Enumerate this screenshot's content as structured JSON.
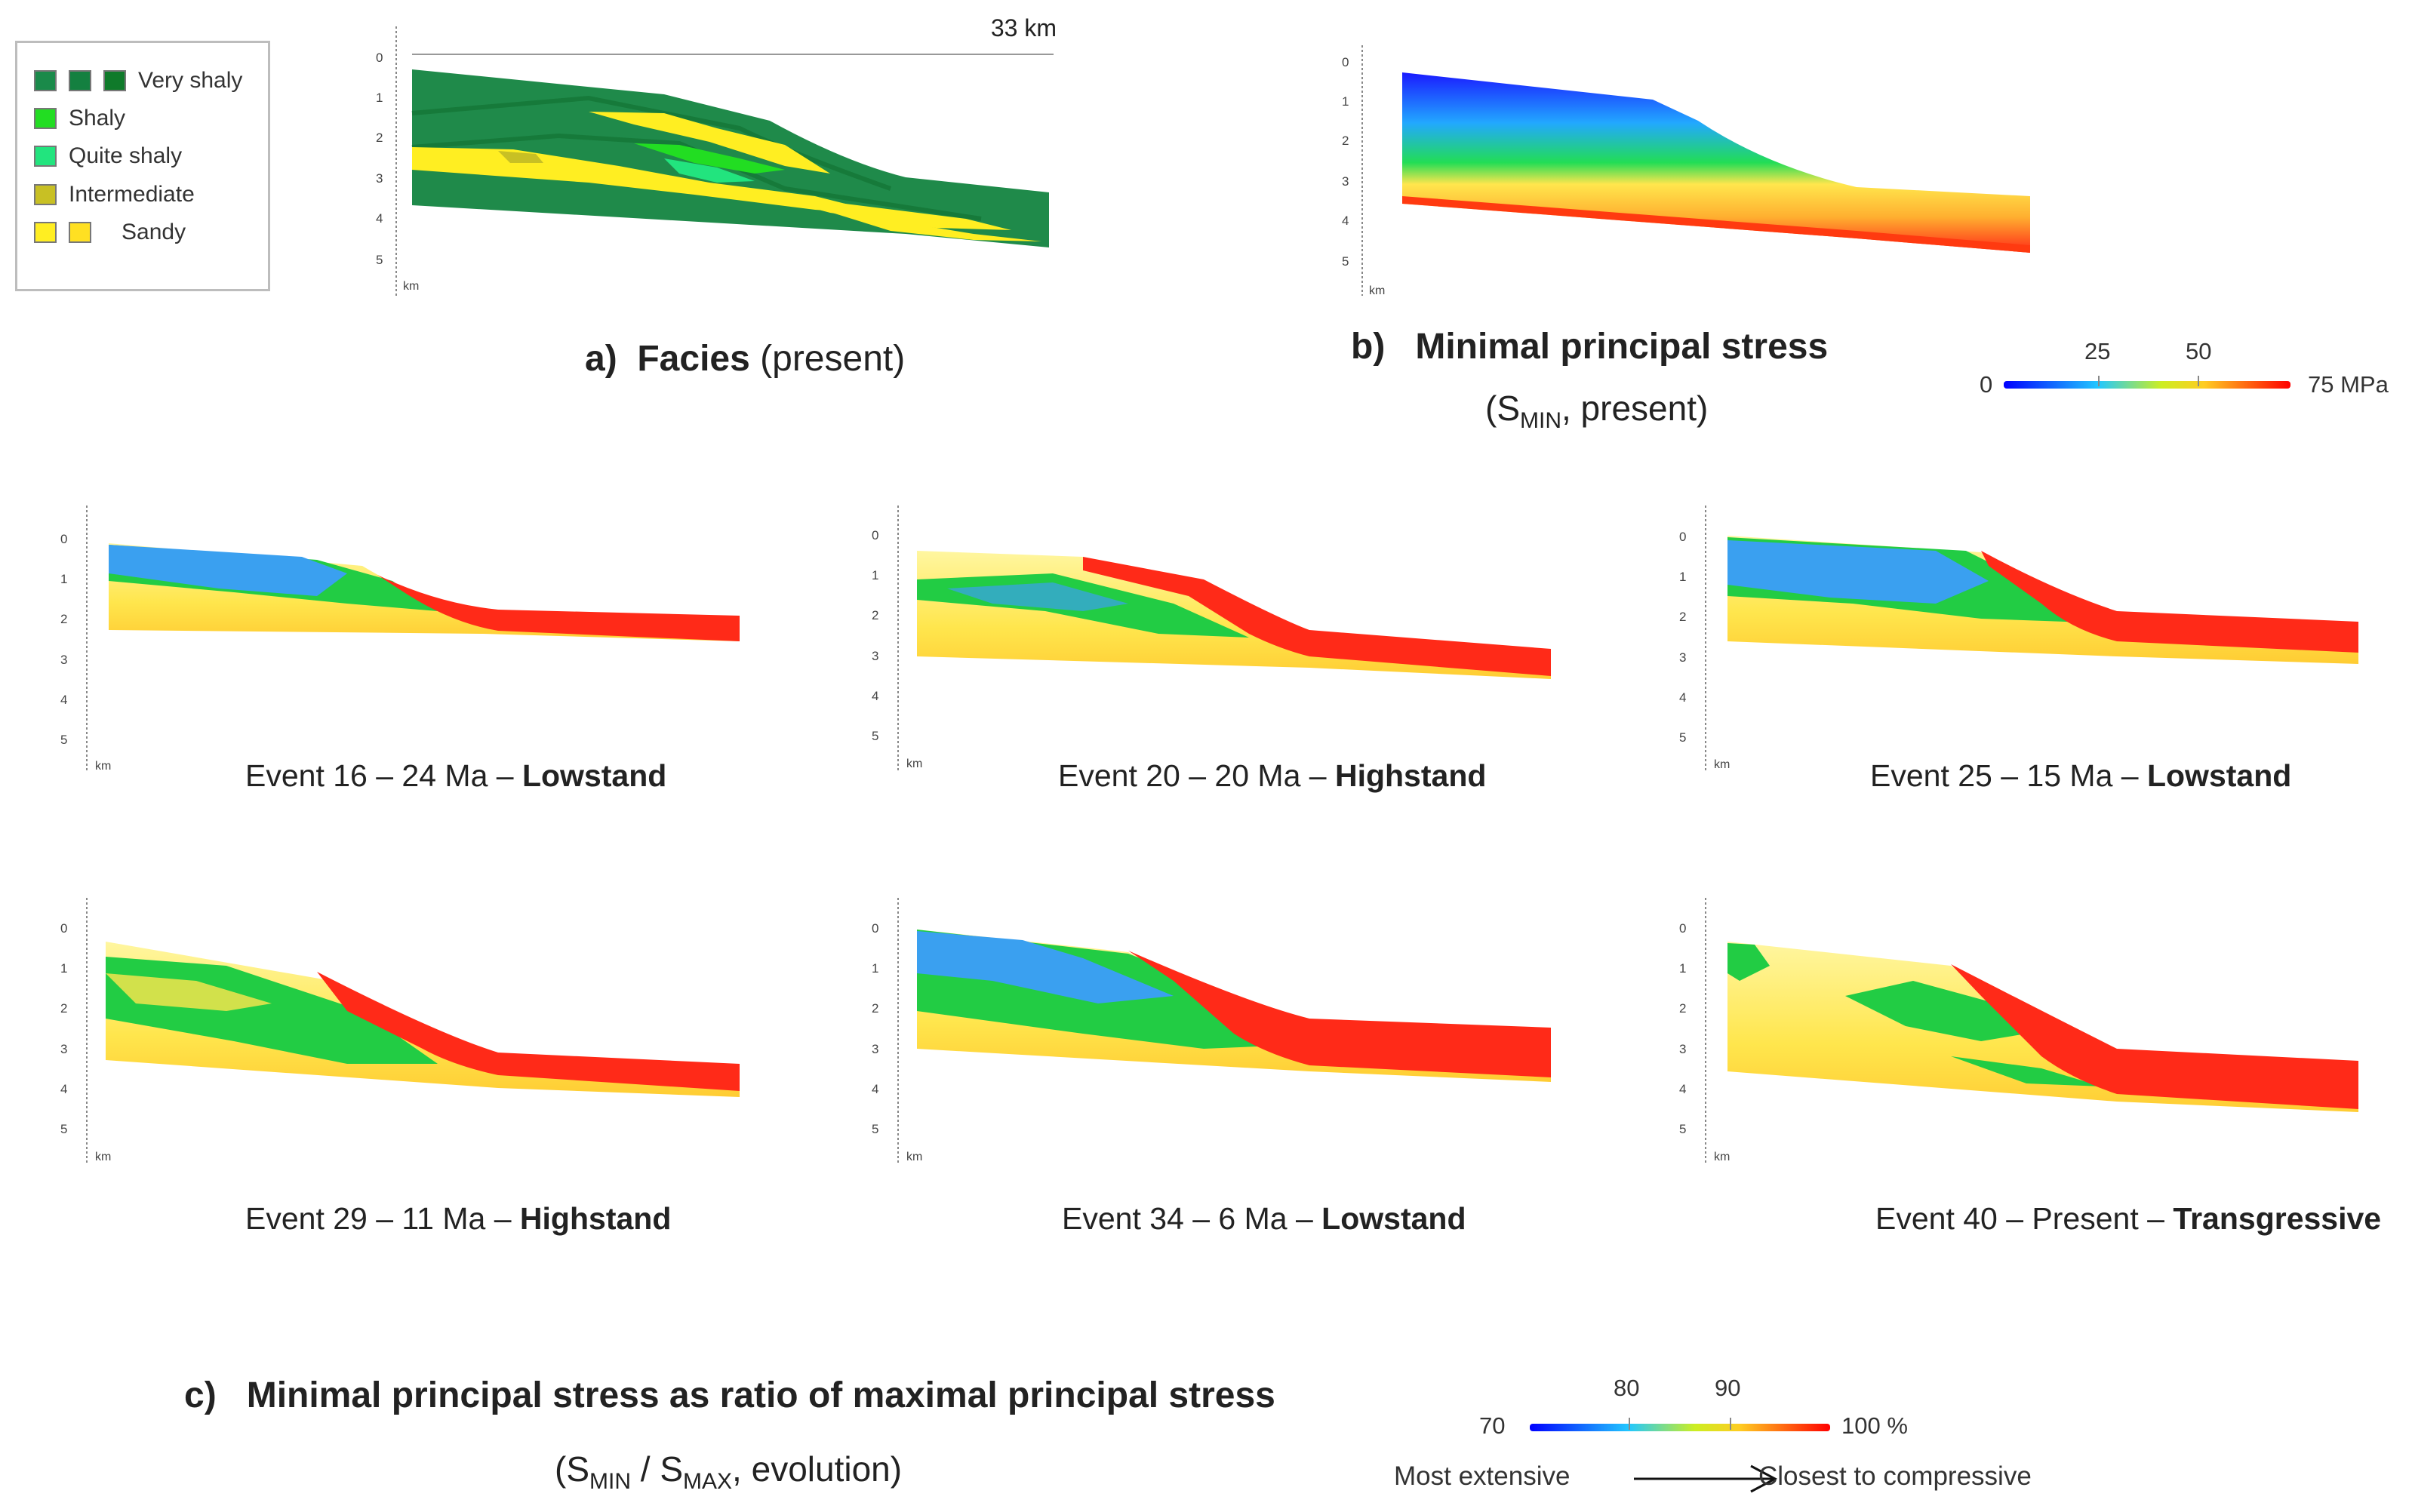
{
  "legend": {
    "items": [
      {
        "label": "Very shaly",
        "swatches": [
          "#1a8a4a",
          "#148040",
          "#0f7a2a"
        ]
      },
      {
        "label": "Shaly",
        "swatches": [
          "#22dd22"
        ]
      },
      {
        "label": "Quite shaly",
        "swatches": [
          "#22e47e"
        ]
      },
      {
        "label": "Intermediate",
        "swatches": [
          "#c8c024"
        ]
      },
      {
        "label": "Sandy",
        "swatches": [
          "#ffee22",
          "#ffe022"
        ]
      }
    ]
  },
  "panel_a": {
    "scale_label": "33 km",
    "caption_letter": "a)",
    "caption_bold": "Facies",
    "caption_rest": "(present)"
  },
  "panel_b": {
    "caption_letter": "b)",
    "caption_bold": "Minimal principal stress",
    "sub_prefix": "(S",
    "sub_subscript": "MIN",
    "sub_rest": ", present)",
    "colorbar": {
      "min_label": "0",
      "tick1": "25",
      "tick2": "50",
      "max_label": "75 MPa"
    }
  },
  "axis": {
    "ticks": [
      "0",
      "1",
      "2",
      "3",
      "4",
      "5"
    ],
    "unit": "km"
  },
  "events": [
    {
      "prefix": "Event 16 – 24 Ma – ",
      "stand": "Lowstand"
    },
    {
      "prefix": "Event 20 – 20 Ma – ",
      "stand": "Highstand"
    },
    {
      "prefix": "Event 25 – 15 Ma – ",
      "stand": "Lowstand"
    },
    {
      "prefix": "Event 29 – 11 Ma – ",
      "stand": "Highstand"
    },
    {
      "prefix": "Event 34 – 6 Ma – ",
      "stand": "Lowstand"
    },
    {
      "prefix": "Event 40 – Present – ",
      "stand": "Transgressive"
    }
  ],
  "panel_c": {
    "caption_letter": "c)",
    "caption_bold": "Minimal principal stress as ratio of maximal principal stress",
    "sub_prefix": "(S",
    "sub_min": "MIN",
    "sub_mid": " / S",
    "sub_max": "MAX",
    "sub_rest": ", evolution)",
    "colorbar": {
      "min_label": "70",
      "tick1": "80",
      "tick2": "90",
      "max_label": "100 %"
    },
    "arrow_left": "Most extensive",
    "arrow_right": "Closest to compressive"
  },
  "colors": {
    "stress_low": "#1a1aff",
    "stress_mid": "#22cc44",
    "stress_sand": "#ffe64d",
    "stress_high": "#ff2020",
    "shale": "#1f8a4a"
  }
}
